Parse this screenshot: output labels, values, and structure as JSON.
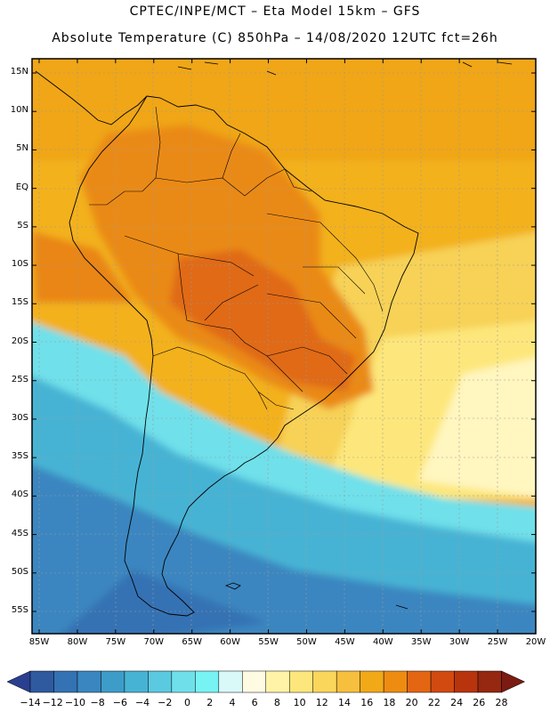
{
  "header": {
    "line1": "CPTEC/INPE/MCT –  Eta Model 15km – GFS",
    "line2": "Absolute Temperature (C) 850hPa – 14/08/2020 12UTC fct=26h"
  },
  "map": {
    "lat_labels": [
      "15N",
      "10N",
      "5N",
      "EQ",
      "5S",
      "10S",
      "15S",
      "20S",
      "25S",
      "30S",
      "35S",
      "40S",
      "45S",
      "50S",
      "55S"
    ],
    "lon_labels": [
      "85W",
      "80W",
      "75W",
      "70W",
      "65W",
      "60W",
      "55W",
      "50W",
      "45W",
      "40W",
      "35W",
      "30W",
      "25W",
      "20W"
    ],
    "lat_values": [
      15,
      10,
      5,
      0,
      -5,
      -10,
      -15,
      -20,
      -25,
      -30,
      -35,
      -40,
      -45,
      -50,
      -55
    ],
    "lon_values": [
      -85,
      -80,
      -75,
      -70,
      -65,
      -60,
      -55,
      -50,
      -45,
      -40,
      -35,
      -30,
      -25,
      -20
    ]
  },
  "colorbar": {
    "labels": [
      "-14",
      "-12",
      "-10",
      "-8",
      "-6",
      "-4",
      "-2",
      "0",
      "2",
      "4",
      "6",
      "8",
      "10",
      "12",
      "14",
      "16",
      "18",
      "20",
      "22",
      "24",
      "26",
      "28"
    ],
    "colors": [
      "#2a3f8f",
      "#2f5aa0",
      "#3472b4",
      "#3a86c0",
      "#3e9cc9",
      "#47b3d4",
      "#5bc9df",
      "#6fe0ea",
      "#78f3f4",
      "#d9f8f8",
      "#fffbe3",
      "#fff3a8",
      "#fde77c",
      "#fad65b",
      "#f6bf3e",
      "#f2a918",
      "#ee8c12",
      "#e46612",
      "#d24a10",
      "#b8340d",
      "#962710",
      "#7b1b12"
    ]
  }
}
